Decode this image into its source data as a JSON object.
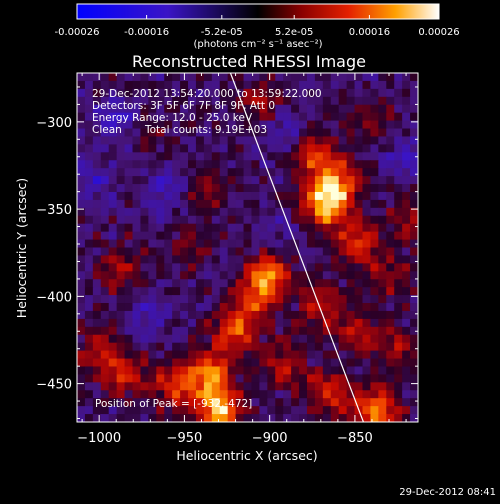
{
  "chart_data": {
    "type": "heatmap",
    "title": "Reconstructed RHESSI Image",
    "xlabel": "Heliocentric X (arcsec)",
    "ylabel": "Heliocentric Y (arcsec)",
    "x_ticks": [
      -1000,
      -950,
      -900,
      -850
    ],
    "y_ticks": [
      -300,
      -350,
      -400,
      -450
    ],
    "xlim": [
      -1013,
      -813
    ],
    "ylim": [
      -472,
      -272
    ],
    "colorbar": {
      "ticks": [
        "-0.00026",
        "-0.00016",
        "-5.2e-05",
        "5.2e-05",
        "0.00016",
        "0.00026"
      ],
      "tick_values": [
        -0.00026,
        -0.00016,
        -5.2e-05,
        5.2e-05,
        0.00016,
        0.00026
      ],
      "range": [
        -0.00026,
        0.00026
      ],
      "unit_label": "(photons cm⁻² s⁻¹ asec⁻²)"
    },
    "annotations": {
      "time_range": "29-Dec-2012 13:54:20.000 to 13:59:22.000",
      "detectors": "Detectors: 3F 5F 6F 7F 8F 9F, Att 0",
      "energy": "Energy Range: 12.0 - 25.0 keV",
      "algorithm": "Clean",
      "counts": "Total counts: 9.19E+03",
      "peak": "Position of Peak = [-932,-472]"
    },
    "limb_line": {
      "x": [
        -923,
        -845
      ],
      "y": [
        -272,
        -472
      ]
    },
    "blobs": [
      {
        "x": -868,
        "y": -348,
        "v": 0.00024
      },
      {
        "x": -860,
        "y": -335,
        "v": 0.0002
      },
      {
        "x": -875,
        "y": -318,
        "v": 0.00015
      },
      {
        "x": -848,
        "y": -370,
        "v": 0.00016
      },
      {
        "x": -900,
        "y": -388,
        "v": 0.0002
      },
      {
        "x": -910,
        "y": -402,
        "v": 0.00014
      },
      {
        "x": -870,
        "y": -405,
        "v": 0.00012
      },
      {
        "x": -920,
        "y": -420,
        "v": 0.00018
      },
      {
        "x": -935,
        "y": -443,
        "v": 0.0002
      },
      {
        "x": -955,
        "y": -452,
        "v": 0.00016
      },
      {
        "x": -985,
        "y": -445,
        "v": 0.00014
      },
      {
        "x": -1000,
        "y": -430,
        "v": 0.00012
      },
      {
        "x": -988,
        "y": -385,
        "v": 0.0001
      },
      {
        "x": -865,
        "y": -455,
        "v": 0.00015
      },
      {
        "x": -838,
        "y": -465,
        "v": 0.00022
      },
      {
        "x": -825,
        "y": -430,
        "v": 0.0001
      },
      {
        "x": -830,
        "y": -390,
        "v": 9e-05
      },
      {
        "x": -840,
        "y": -300,
        "v": 8e-05
      },
      {
        "x": -938,
        "y": -340,
        "v": 8e-05
      },
      {
        "x": -905,
        "y": -290,
        "v": 0.0001
      },
      {
        "x": -930,
        "y": -465,
        "v": 0.00026
      },
      {
        "x": -892,
        "y": -440,
        "v": 0.00012
      },
      {
        "x": -818,
        "y": -355,
        "v": 9e-05
      },
      {
        "x": -850,
        "y": -420,
        "v": 0.00011
      },
      {
        "x": -970,
        "y": -310,
        "v": 5e-05
      },
      {
        "x": -948,
        "y": -372,
        "v": 6e-05
      }
    ],
    "negative_blobs": [
      {
        "x": -990,
        "y": -300,
        "v": -9e-05
      },
      {
        "x": -960,
        "y": -340,
        "v": -8e-05
      },
      {
        "x": -1003,
        "y": -335,
        "v": -7e-05
      },
      {
        "x": -970,
        "y": -410,
        "v": -6e-05
      },
      {
        "x": -890,
        "y": -305,
        "v": -8e-05
      },
      {
        "x": -820,
        "y": -320,
        "v": -9e-05
      },
      {
        "x": -895,
        "y": -365,
        "v": -5e-05
      }
    ]
  },
  "footer": {
    "timestamp": "29-Dec-2012 08:41"
  },
  "colors": {
    "background": "#000000",
    "foreground": "#ffffff"
  }
}
